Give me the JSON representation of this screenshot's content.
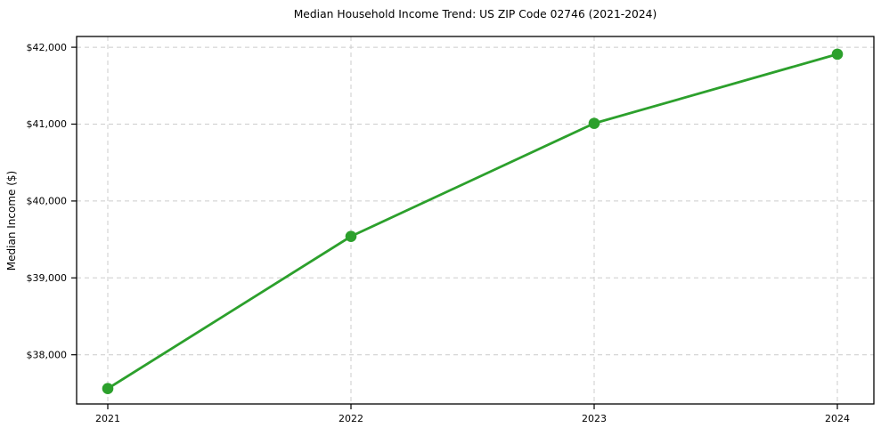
{
  "chart_data": {
    "type": "line",
    "title": "Median Household Income Trend: US ZIP Code 02746 (2021-2024)",
    "xlabel": "",
    "ylabel": "Median Income ($)",
    "categories": [
      "2021",
      "2022",
      "2023",
      "2024"
    ],
    "values": [
      37560,
      39540,
      41010,
      41910
    ],
    "ylim": [
      37360,
      42140
    ],
    "yticks": [
      38000,
      39000,
      40000,
      41000,
      42000
    ],
    "ytick_labels": [
      "$38,000",
      "$39,000",
      "$40,000",
      "$41,000",
      "$42,000"
    ],
    "grid": {
      "visible": true,
      "style": "dashed",
      "axes": "both",
      "color": "#cccccc"
    },
    "legend": {
      "visible": false
    },
    "line_color": "#2ca02c",
    "marker": {
      "shape": "circle",
      "color": "#2ca02c"
    },
    "background_color": "#ffffff",
    "spine_color": "#000000",
    "text_color": "#000000"
  }
}
